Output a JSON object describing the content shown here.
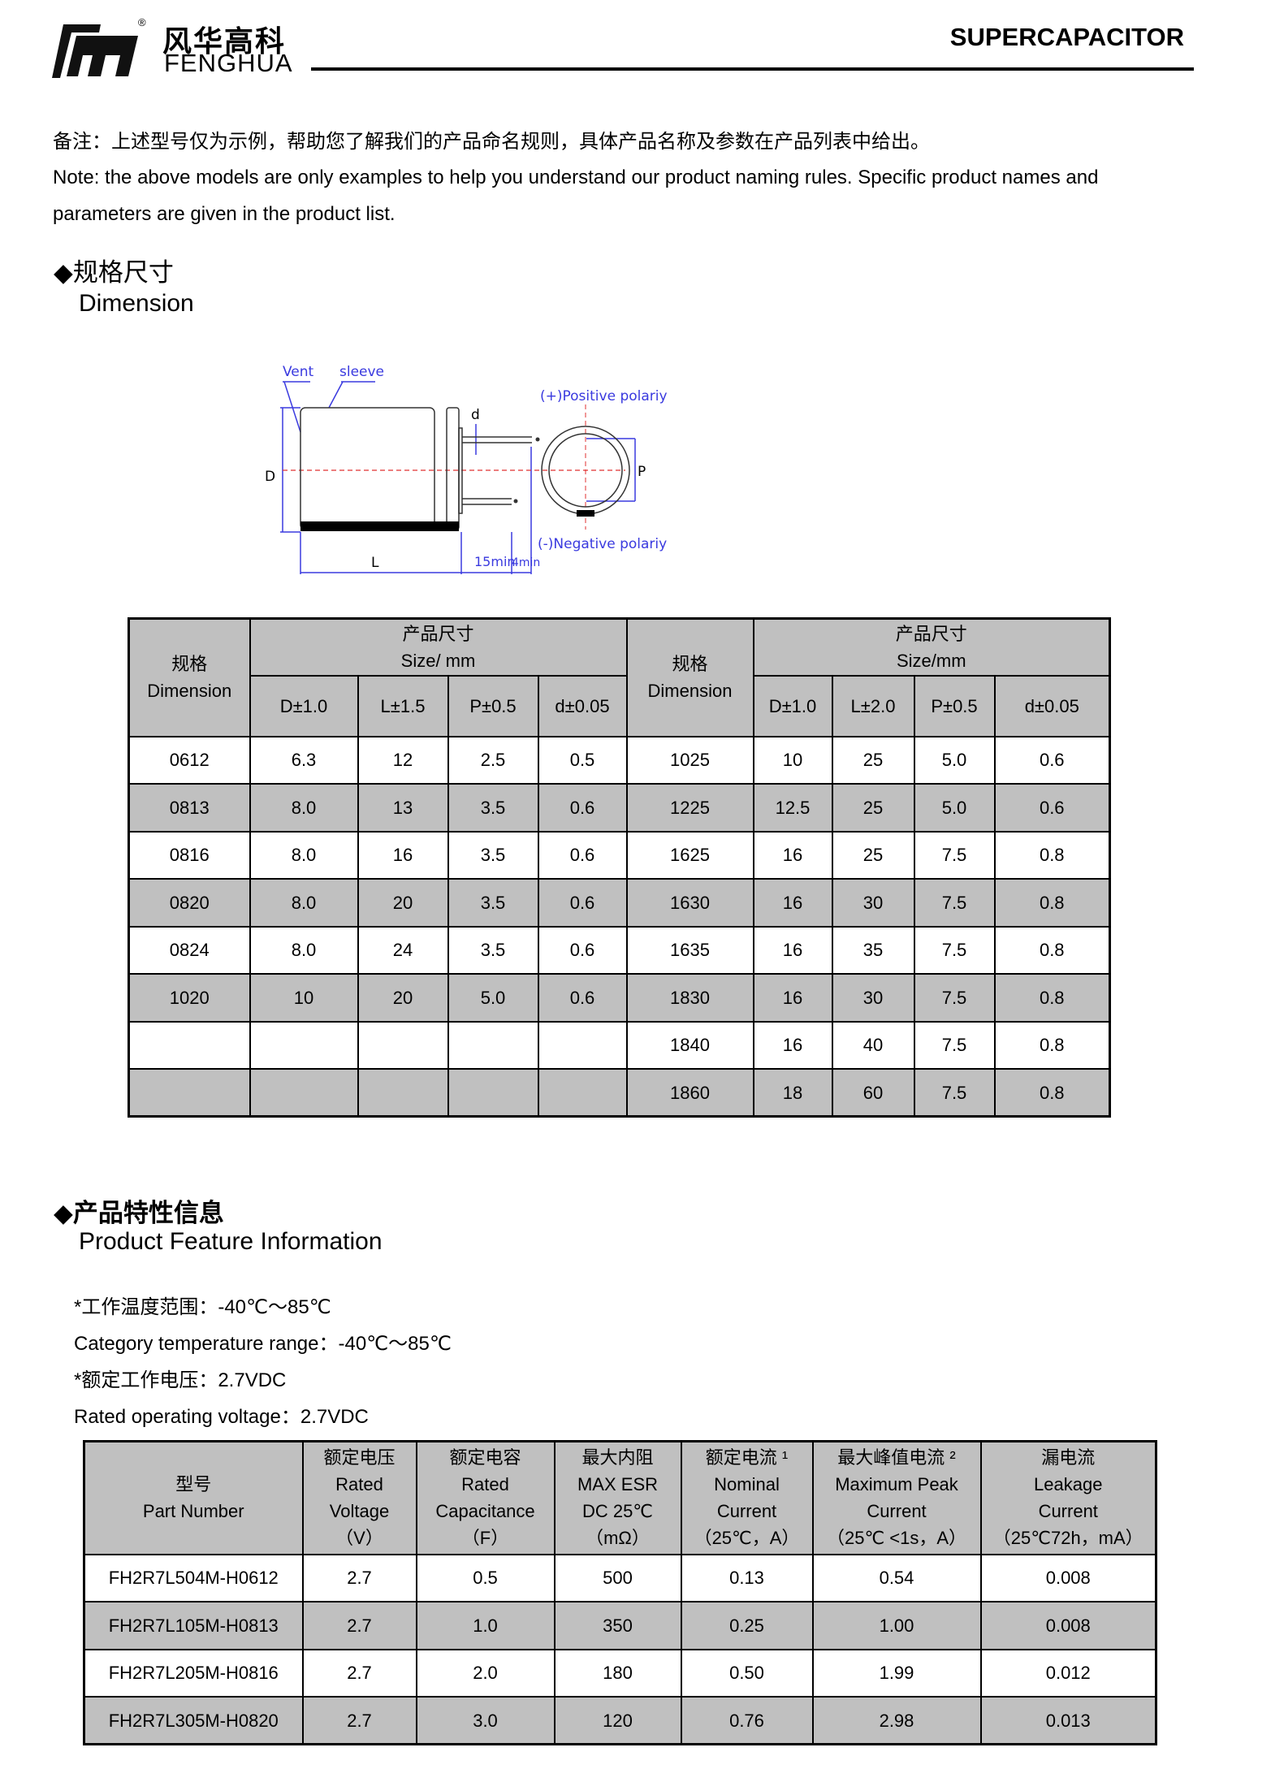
{
  "header": {
    "logo_cn": "风华高科",
    "logo_en": "FENGHUA",
    "registered": "®",
    "title": "SUPERCAPACITOR"
  },
  "note": {
    "cn": "备注：上述型号仅为示例，帮助您了解我们的产品命名规则，具体产品名称及参数在产品列表中给出。",
    "en": "Note: the above models are only examples to help you understand our product naming rules. Specific product names and parameters are given in the product list."
  },
  "dimension_section": {
    "bullet": "◆",
    "title_cn": "规格尺寸",
    "title_en": "Dimension"
  },
  "diagram": {
    "vent": "Vent",
    "sleeve": "sleeve",
    "d": "d",
    "D": "D",
    "L": "L",
    "P": "P",
    "min15": "15min",
    "min4": "4min",
    "positive": "(+)Positive polariy",
    "negative": "(-)Negative polariy"
  },
  "dim_table": {
    "spec_cn": "规格",
    "spec_en": "Dimension",
    "size_cn": "产品尺寸",
    "size_en_left": "Size/ mm",
    "size_en_right": "Size/mm",
    "cols_left": [
      "D±1.0",
      "L±1.5",
      "P±0.5",
      "d±0.05"
    ],
    "cols_right": [
      "D±1.0",
      "L±2.0",
      "P±0.5",
      "d±0.05"
    ],
    "rows": [
      [
        "0612",
        "6.3",
        "12",
        "2.5",
        "0.5",
        "1025",
        "10",
        "25",
        "5.0",
        "0.6"
      ],
      [
        "0813",
        "8.0",
        "13",
        "3.5",
        "0.6",
        "1225",
        "12.5",
        "25",
        "5.0",
        "0.6"
      ],
      [
        "0816",
        "8.0",
        "16",
        "3.5",
        "0.6",
        "1625",
        "16",
        "25",
        "7.5",
        "0.8"
      ],
      [
        "0820",
        "8.0",
        "20",
        "3.5",
        "0.6",
        "1630",
        "16",
        "30",
        "7.5",
        "0.8"
      ],
      [
        "0824",
        "8.0",
        "24",
        "3.5",
        "0.6",
        "1635",
        "16",
        "35",
        "7.5",
        "0.8"
      ],
      [
        "1020",
        "10",
        "20",
        "5.0",
        "0.6",
        "1830",
        "16",
        "30",
        "7.5",
        "0.8"
      ],
      [
        "",
        "",
        "",
        "",
        "",
        "1840",
        "16",
        "40",
        "7.5",
        "0.8"
      ],
      [
        "",
        "",
        "",
        "",
        "",
        "1860",
        "18",
        "60",
        "7.5",
        "0.8"
      ]
    ]
  },
  "feature_section": {
    "bullet": "◆",
    "title_cn": "产品特性信息",
    "title_en": "Product Feature Information",
    "lines": [
      "*工作温度范围：-40℃～85℃",
      "Category temperature range：-40℃～85℃",
      "*额定工作电压：2.7VDC",
      "Rated operating voltage：2.7VDC"
    ]
  },
  "feature_table": {
    "headers": [
      [
        "型号",
        "Part Number"
      ],
      [
        "额定电压",
        "Rated",
        "Voltage",
        "（V）"
      ],
      [
        "额定电容",
        "Rated",
        "Capacitance",
        "（F）"
      ],
      [
        "最大内阻",
        "MAX ESR",
        "DC 25℃",
        "（mΩ）"
      ],
      [
        "额定电流 ¹",
        "Nominal",
        "Current",
        "（25℃，A）"
      ],
      [
        "最大峰值电流 ²",
        "Maximum Peak",
        "Current",
        "（25℃ <1s，A）"
      ],
      [
        "漏电流",
        "Leakage",
        "Current",
        "（25℃72h，mA）"
      ]
    ],
    "rows": [
      [
        "FH2R7L504M-H0612",
        "2.7",
        "0.5",
        "500",
        "0.13",
        "0.54",
        "0.008"
      ],
      [
        "FH2R7L105M-H0813",
        "2.7",
        "1.0",
        "350",
        "0.25",
        "1.00",
        "0.008"
      ],
      [
        "FH2R7L205M-H0816",
        "2.7",
        "2.0",
        "180",
        "0.50",
        "1.99",
        "0.012"
      ],
      [
        "FH2R7L305M-H0820",
        "2.7",
        "3.0",
        "120",
        "0.76",
        "2.98",
        "0.013"
      ]
    ]
  },
  "colors": {
    "row_shade": "#c0c0c0",
    "diagram_blue": "#3a3adf",
    "center_line": "#e03030"
  }
}
